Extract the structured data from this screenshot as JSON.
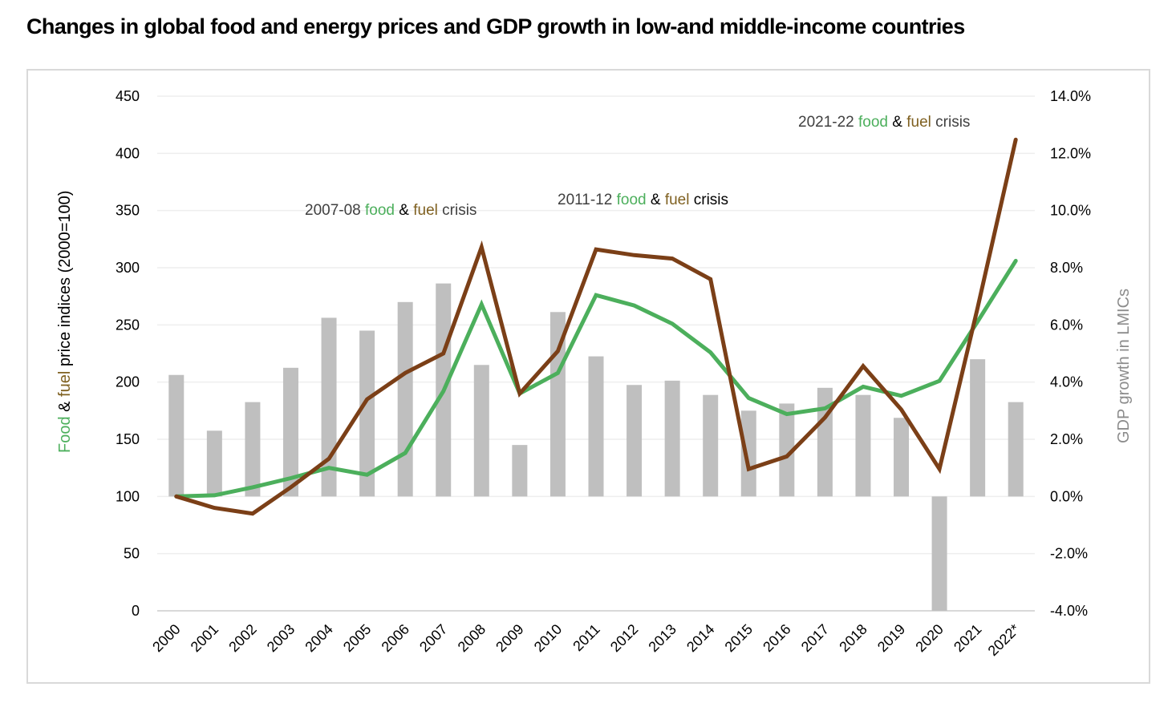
{
  "title": "Changes in global food and energy prices and GDP growth in low-and middle-income countries",
  "colors": {
    "food": "#4caf5c",
    "fuel": "#7b3f17",
    "fuel_text": "#7f6020",
    "gdp_bar": "#bfbfbf",
    "gdp_axis_text": "#8c8c8c",
    "annotation_text": "#404040",
    "grid": "#eeeeee"
  },
  "chart_data": {
    "type": "bar+line",
    "title": "Changes in global food and energy prices and GDP growth in low-and middle-income countries",
    "categories": [
      "2000",
      "2001",
      "2002",
      "2003",
      "2004",
      "2005",
      "2006",
      "2007",
      "2008",
      "2009",
      "2010",
      "2011",
      "2012",
      "2013",
      "2014",
      "2015",
      "2016",
      "2017",
      "2018",
      "2019",
      "2020",
      "2021",
      "2022*"
    ],
    "series": [
      {
        "name": "GDP growth in LMICs",
        "type": "bar",
        "axis": "right",
        "unit": "%",
        "values": [
          4.25,
          2.3,
          3.3,
          4.5,
          6.25,
          5.8,
          6.8,
          7.45,
          4.6,
          1.8,
          6.45,
          4.9,
          3.9,
          4.05,
          3.55,
          3.0,
          3.25,
          3.8,
          3.55,
          2.75,
          -4.0,
          4.8,
          3.3
        ]
      },
      {
        "name": "Food",
        "type": "line",
        "axis": "left",
        "values": [
          100,
          101,
          108,
          116,
          125,
          119,
          138,
          192,
          268,
          190,
          208,
          276,
          267,
          251,
          226,
          186,
          172,
          177,
          196,
          188,
          201,
          253,
          306
        ]
      },
      {
        "name": "Fuel",
        "type": "line",
        "axis": "left",
        "values": [
          100,
          90,
          85,
          108,
          133,
          185,
          208,
          225,
          318,
          190,
          227,
          316,
          311,
          308,
          290,
          124,
          135,
          169,
          214,
          176,
          124,
          265,
          412
        ]
      }
    ],
    "left_axis": {
      "label_parts": [
        {
          "text": "Food",
          "color_key": "food"
        },
        {
          "text": " & ",
          "color_key": "plain"
        },
        {
          "text": "fuel",
          "color_key": "fuel_text"
        },
        {
          "text": " price indices (2000=100)",
          "color_key": "plain"
        }
      ],
      "ylim": [
        0,
        450
      ],
      "ticks": [
        "0",
        "50",
        "100",
        "150",
        "200",
        "250",
        "300",
        "350",
        "400",
        "450"
      ]
    },
    "right_axis": {
      "label": "GDP growth in LMICs",
      "ylim": [
        -4.0,
        14.0
      ],
      "ticks": [
        "-4.0%",
        "-2.0%",
        "0.0%",
        "2.0%",
        "4.0%",
        "6.0%",
        "8.0%",
        "10.0%",
        "12.0%",
        "14.0%"
      ]
    },
    "grid": true,
    "legend": "none",
    "annotations": [
      {
        "prefix": "2007-08 ",
        "food": "food",
        "amp": " & ",
        "fuel": "fuel",
        "suffix": " crisis",
        "near": "2007"
      },
      {
        "prefix": "2011-12 ",
        "food": "food",
        "amp": " & ",
        "fuel": "fuel",
        "suffix": " crisis",
        "near": "2011"
      },
      {
        "prefix": "2021-22 ",
        "food": "food",
        "amp": " & ",
        "fuel": "fuel",
        "suffix": " crisis",
        "near": "2021"
      }
    ]
  }
}
